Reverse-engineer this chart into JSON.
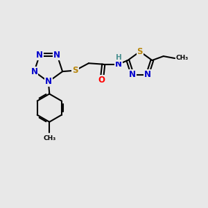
{
  "bg_color": "#e8e8e8",
  "bond_color": "#000000",
  "bond_width": 1.5,
  "atom_colors": {
    "N": "#0000cc",
    "S": "#b8860b",
    "O": "#ff0000",
    "C": "#000000",
    "H": "#4a9090"
  },
  "font_size": 8.5,
  "title": ""
}
